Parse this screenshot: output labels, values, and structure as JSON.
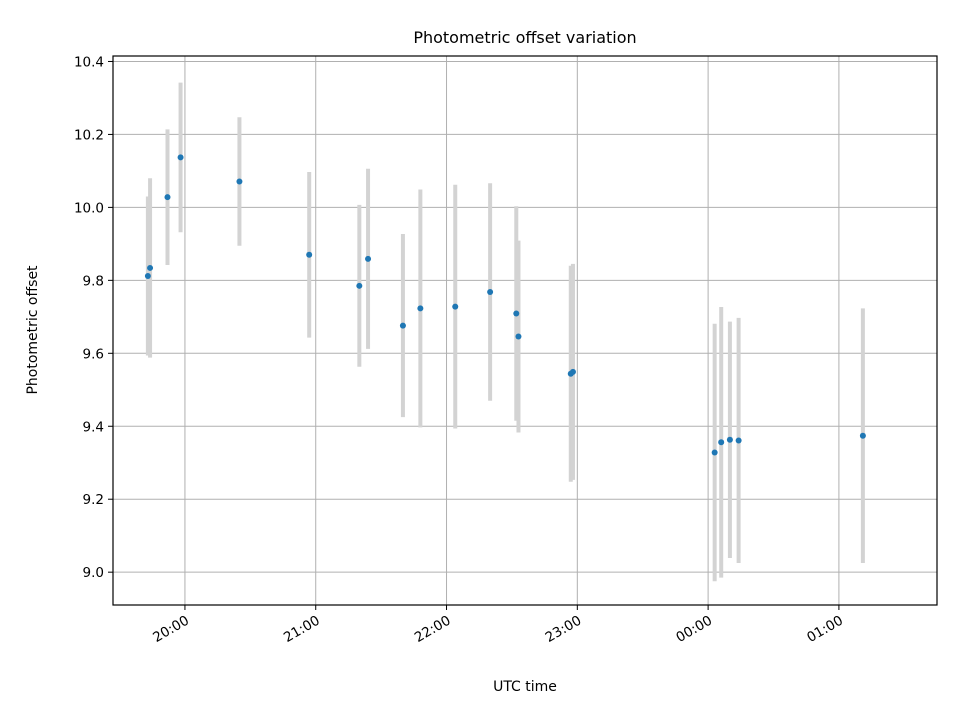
{
  "chart_data": {
    "type": "scatter",
    "title": "Photometric offset variation",
    "xlabel": "UTC time",
    "ylabel": "Photometric offset",
    "x_axis_type": "time",
    "xlim": [
      "19:27",
      "01:45"
    ],
    "ylim": [
      8.91,
      10.415
    ],
    "grid": true,
    "x_ticks": [
      {
        "value": "20:00",
        "label": "20:00"
      },
      {
        "value": "21:00",
        "label": "21:00"
      },
      {
        "value": "22:00",
        "label": "22:00"
      },
      {
        "value": "23:00",
        "label": "23:00"
      },
      {
        "value": "00:00",
        "label": "00:00"
      },
      {
        "value": "01:00",
        "label": "01:00"
      }
    ],
    "y_ticks": [
      {
        "value": 9.0,
        "label": "9.0"
      },
      {
        "value": 9.2,
        "label": "9.2"
      },
      {
        "value": 9.4,
        "label": "9.4"
      },
      {
        "value": 9.6,
        "label": "9.6"
      },
      {
        "value": 9.8,
        "label": "9.8"
      },
      {
        "value": 10.0,
        "label": "10.0"
      },
      {
        "value": 10.2,
        "label": "10.2"
      },
      {
        "value": 10.4,
        "label": "10.4"
      }
    ],
    "series": [
      {
        "marker_color": "#1f77b4",
        "errorbar_color": "#d3d3d3",
        "points": [
          {
            "t": "19:43",
            "y": 9.812,
            "ylow": 9.594,
            "yhigh": 10.03
          },
          {
            "t": "19:44",
            "y": 9.834,
            "ylow": 9.588,
            "yhigh": 10.08
          },
          {
            "t": "19:52",
            "y": 10.028,
            "ylow": 9.842,
            "yhigh": 10.214
          },
          {
            "t": "19:58",
            "y": 10.137,
            "ylow": 9.932,
            "yhigh": 10.342
          },
          {
            "t": "20:25",
            "y": 10.071,
            "ylow": 9.895,
            "yhigh": 10.247
          },
          {
            "t": "20:57",
            "y": 9.87,
            "ylow": 9.643,
            "yhigh": 10.097
          },
          {
            "t": "21:20",
            "y": 9.785,
            "ylow": 9.563,
            "yhigh": 10.007
          },
          {
            "t": "21:24",
            "y": 9.859,
            "ylow": 9.612,
            "yhigh": 10.106
          },
          {
            "t": "21:40",
            "y": 9.676,
            "ylow": 9.425,
            "yhigh": 9.927
          },
          {
            "t": "21:48",
            "y": 9.723,
            "ylow": 9.397,
            "yhigh": 10.049
          },
          {
            "t": "22:04",
            "y": 9.728,
            "ylow": 9.394,
            "yhigh": 10.062
          },
          {
            "t": "22:20",
            "y": 9.768,
            "ylow": 9.47,
            "yhigh": 10.066
          },
          {
            "t": "22:32",
            "y": 9.709,
            "ylow": 9.415,
            "yhigh": 10.003
          },
          {
            "t": "22:33",
            "y": 9.646,
            "ylow": 9.383,
            "yhigh": 9.909
          },
          {
            "t": "22:57",
            "y": 9.544,
            "ylow": 9.248,
            "yhigh": 9.84
          },
          {
            "t": "22:58",
            "y": 9.549,
            "ylow": 9.253,
            "yhigh": 9.845
          },
          {
            "t": "00:03",
            "y": 9.328,
            "ylow": 8.975,
            "yhigh": 9.681
          },
          {
            "t": "00:06",
            "y": 9.356,
            "ylow": 8.985,
            "yhigh": 9.727
          },
          {
            "t": "00:10",
            "y": 9.363,
            "ylow": 9.039,
            "yhigh": 9.687
          },
          {
            "t": "00:14",
            "y": 9.361,
            "ylow": 9.025,
            "yhigh": 9.697
          },
          {
            "t": "01:11",
            "y": 9.374,
            "ylow": 9.025,
            "yhigh": 9.723
          }
        ]
      }
    ]
  }
}
